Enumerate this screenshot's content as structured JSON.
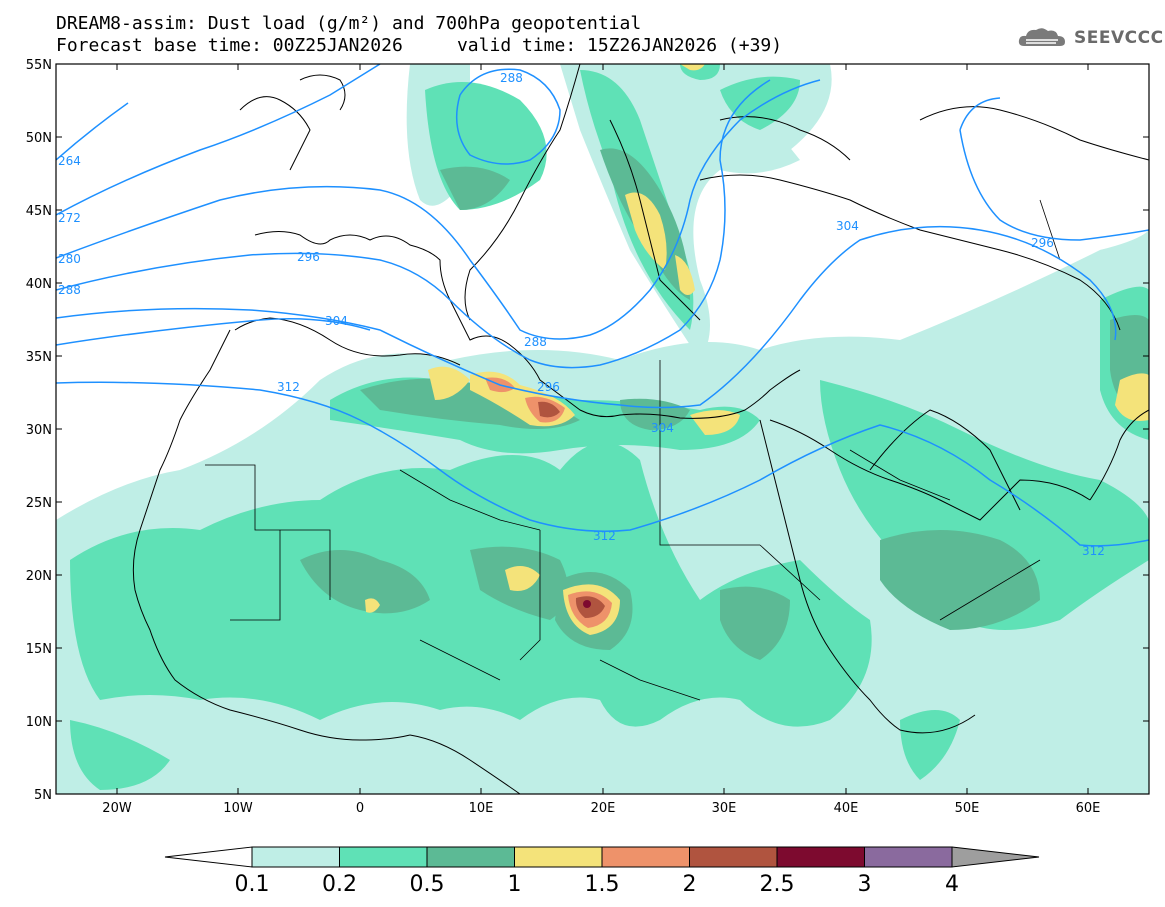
{
  "header": {
    "title_line1": "DREAM8-assim: Dust load (g/m²) and 700hPa geopotential",
    "title_line2": "Forecast base time: 00Z25JAN2026     valid time: 15Z26JAN2026 (+39)"
  },
  "logo": {
    "text": "SEEVCCC",
    "icon": "cloud-icon"
  },
  "map": {
    "lat_labels": [
      "55N",
      "50N",
      "45N",
      "40N",
      "35N",
      "30N",
      "25N",
      "20N",
      "15N",
      "10N",
      "5N"
    ],
    "lon_labels": [
      "20W",
      "10W",
      "0",
      "10E",
      "20E",
      "30E",
      "40E",
      "50E",
      "60E"
    ],
    "lat_range": [
      5,
      55
    ],
    "lon_range": [
      -25,
      65
    ],
    "contour_labels": [
      "264",
      "272",
      "280",
      "288",
      "296",
      "304",
      "312",
      "288",
      "296",
      "304",
      "312",
      "296",
      "304",
      "312",
      "288"
    ],
    "contour_color": "#1e90ff"
  },
  "colorbar": {
    "labels": [
      "0.1",
      "0.2",
      "0.5",
      "1",
      "1.5",
      "2",
      "2.5",
      "3",
      "4"
    ],
    "colors": [
      "#bfeee6",
      "#5fe1b6",
      "#5cba95",
      "#f4e37a",
      "#ee926a",
      "#b0543f",
      "#7d0a2f",
      "#8a6a9e"
    ],
    "under_color": "#ffffff",
    "over_color": "#9e9e9e"
  }
}
